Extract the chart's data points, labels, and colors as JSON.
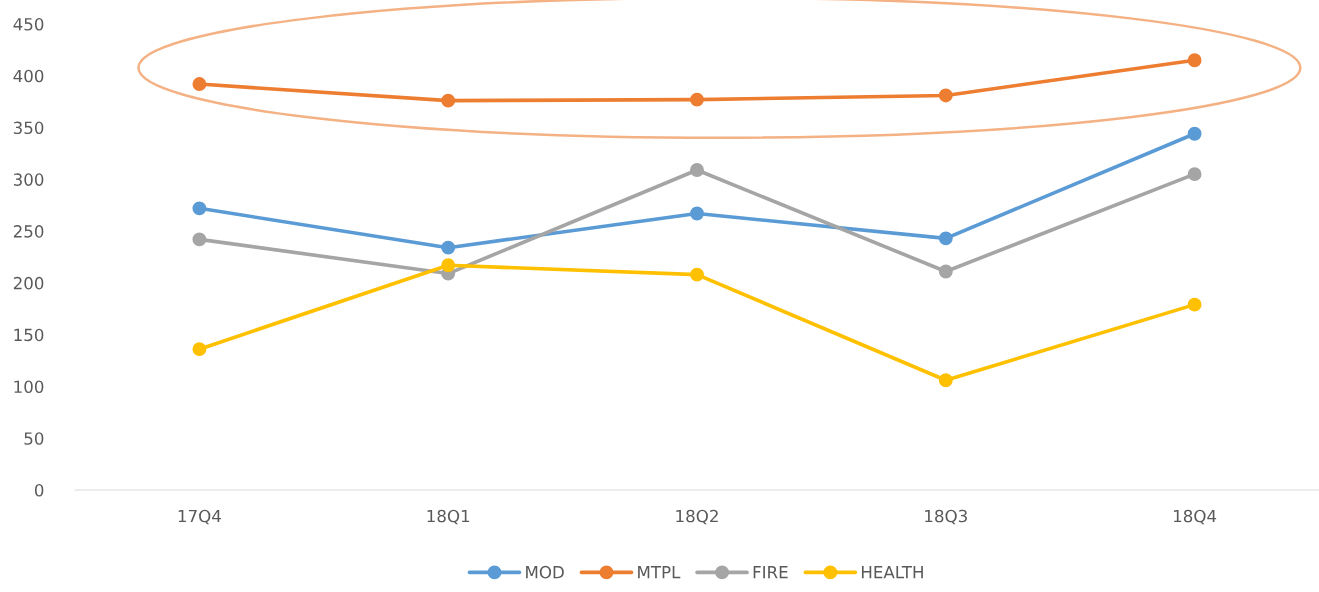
{
  "chart_data": {
    "type": "line",
    "categories": [
      "17Q4",
      "18Q1",
      "18Q2",
      "18Q3",
      "18Q4"
    ],
    "series": [
      {
        "name": "MOD",
        "color": "#5b9bd5",
        "values": [
          272,
          234,
          267,
          243,
          344
        ]
      },
      {
        "name": "MTPL",
        "color": "#ed7d31",
        "values": [
          392,
          376,
          377,
          381,
          415
        ]
      },
      {
        "name": "FIRE",
        "color": "#a5a5a5",
        "values": [
          242,
          209,
          309,
          211,
          305
        ]
      },
      {
        "name": "HEALTH",
        "color": "#ffc000",
        "values": [
          136,
          217,
          208,
          106,
          179
        ]
      }
    ],
    "ylim": [
      0,
      450
    ],
    "yticks": [
      0,
      50,
      100,
      150,
      200,
      250,
      300,
      350,
      400,
      450
    ],
    "grid": false,
    "legend": "bottom",
    "marker": "circle",
    "line_style": "solid"
  }
}
